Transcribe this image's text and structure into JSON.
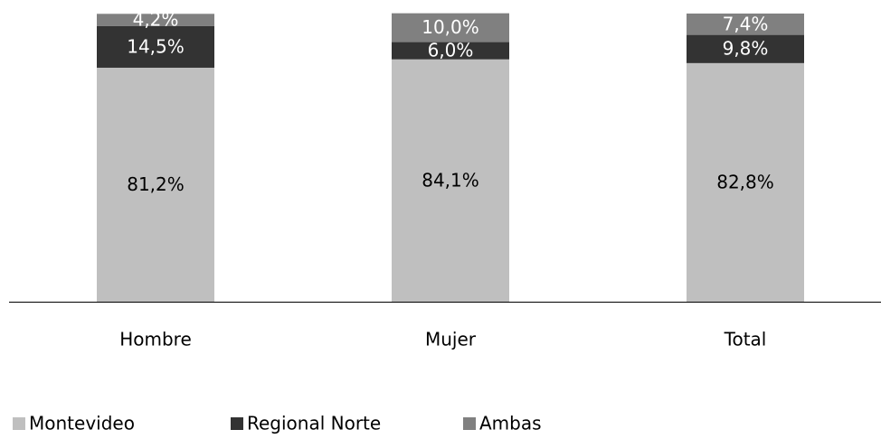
{
  "chart_data": {
    "type": "stacked_bar",
    "categories": [
      "Hombre",
      "Mujer",
      "Total"
    ],
    "series": [
      {
        "name": "Montevideo",
        "color": "#bfbfbf",
        "label_color": "#000000",
        "values": [
          81.2,
          84.1,
          82.8
        ],
        "value_labels": [
          "81,2%",
          "84,1%",
          "82,8%"
        ]
      },
      {
        "name": "Regional Norte",
        "color": "#333333",
        "label_color": "#ffffff",
        "values": [
          14.5,
          6.0,
          9.8
        ],
        "value_labels": [
          "14,5%",
          "6,0%",
          "9,8%"
        ]
      },
      {
        "name": "Ambas",
        "color": "#808080",
        "label_color": "#ffffff",
        "values": [
          4.2,
          10.0,
          7.4
        ],
        "value_labels": [
          "4,2%",
          "10,0%",
          "7,4%"
        ]
      }
    ],
    "ylim": [
      0,
      100
    ],
    "legend": "bottom-left"
  }
}
